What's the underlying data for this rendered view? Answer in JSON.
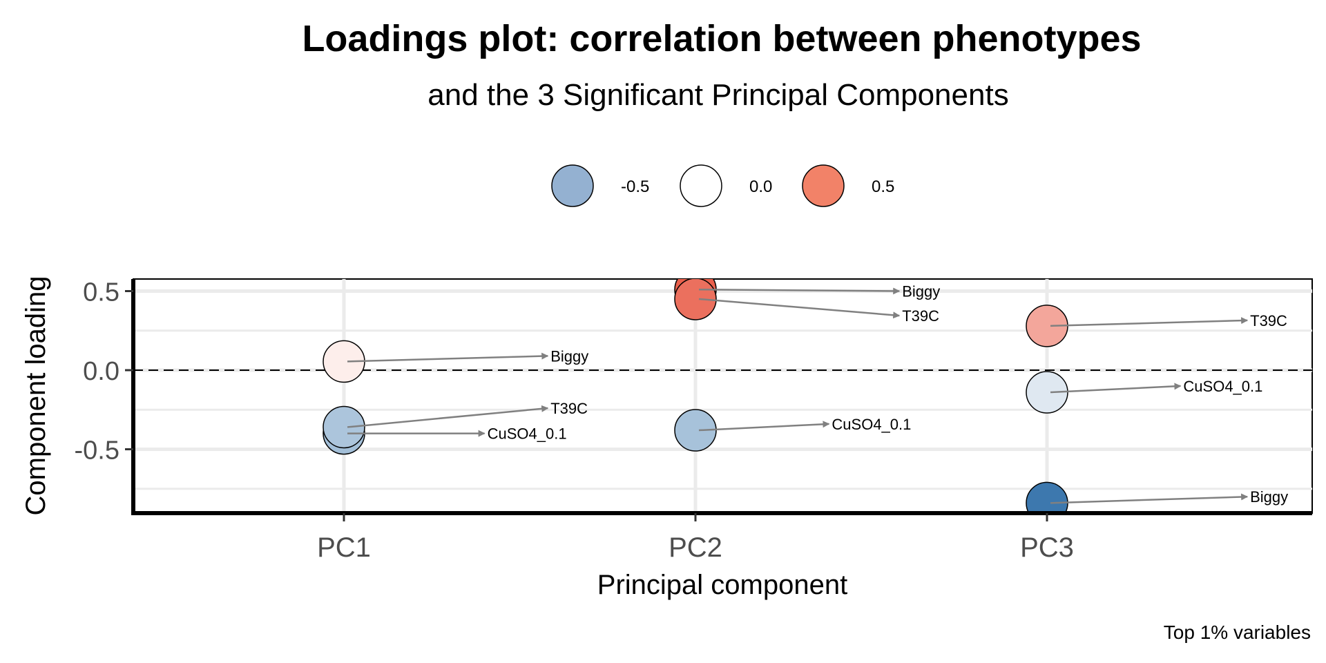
{
  "chart_data": {
    "type": "scatter",
    "title": "Loadings plot: correlation between phenotypes",
    "subtitle": "and the 3 Significant Principal Components",
    "xlabel": "Principal component",
    "ylabel": "Component loading",
    "caption": "Top 1% variables",
    "categories": [
      "PC1",
      "PC2",
      "PC3"
    ],
    "ylim": [
      -0.9,
      0.58
    ],
    "yticks": [
      {
        "value": 0.5,
        "label": "0.5"
      },
      {
        "value": 0.0,
        "label": "0.0"
      },
      {
        "value": -0.5,
        "label": "-0.5"
      }
    ],
    "minor_gridlines": [
      0.25,
      -0.25,
      -0.75
    ],
    "reference_line": {
      "value": 0.0,
      "style": "dashed"
    },
    "grid": true,
    "legend": {
      "position": "top",
      "items": [
        {
          "value": -0.5,
          "label": "-0.5",
          "color": "#94b1d1"
        },
        {
          "value": 0.0,
          "label": "0.0",
          "color": "#ffffff"
        },
        {
          "value": 0.5,
          "label": "0.5",
          "color": "#f28268"
        }
      ]
    },
    "color_scale": {
      "low": "#3b76ad",
      "mid": "#ffffff",
      "high": "#e9604c",
      "domain": [
        -0.85,
        0.0,
        0.5
      ]
    },
    "points": [
      {
        "component": "PC1",
        "variable": "CuSO4_0.1",
        "loading": -0.4,
        "label_loading": -0.4,
        "label_offset": 0.4
      },
      {
        "component": "PC1",
        "variable": "T39C",
        "loading": -0.36,
        "label_loading": -0.24,
        "label_offset": 0.58
      },
      {
        "component": "PC1",
        "variable": "Biggy",
        "loading": 0.055,
        "label_loading": 0.09,
        "label_offset": 0.58
      },
      {
        "component": "PC2",
        "variable": "CuSO4_0.1",
        "loading": -0.38,
        "label_loading": -0.34,
        "label_offset": 0.38
      },
      {
        "component": "PC2",
        "variable": "Biggy",
        "loading": 0.51,
        "label_loading": 0.5,
        "label_offset": 0.58
      },
      {
        "component": "PC2",
        "variable": "T39C",
        "loading": 0.45,
        "label_loading": 0.345,
        "label_offset": 0.58
      },
      {
        "component": "PC3",
        "variable": "T39C",
        "loading": 0.28,
        "label_loading": 0.315,
        "label_offset": 0.57
      },
      {
        "component": "PC3",
        "variable": "CuSO4_0.1",
        "loading": -0.14,
        "label_loading": -0.1,
        "label_offset": 0.38
      },
      {
        "component": "PC3",
        "variable": "Biggy",
        "loading": -0.84,
        "label_loading": -0.8,
        "label_offset": 0.57
      }
    ]
  }
}
